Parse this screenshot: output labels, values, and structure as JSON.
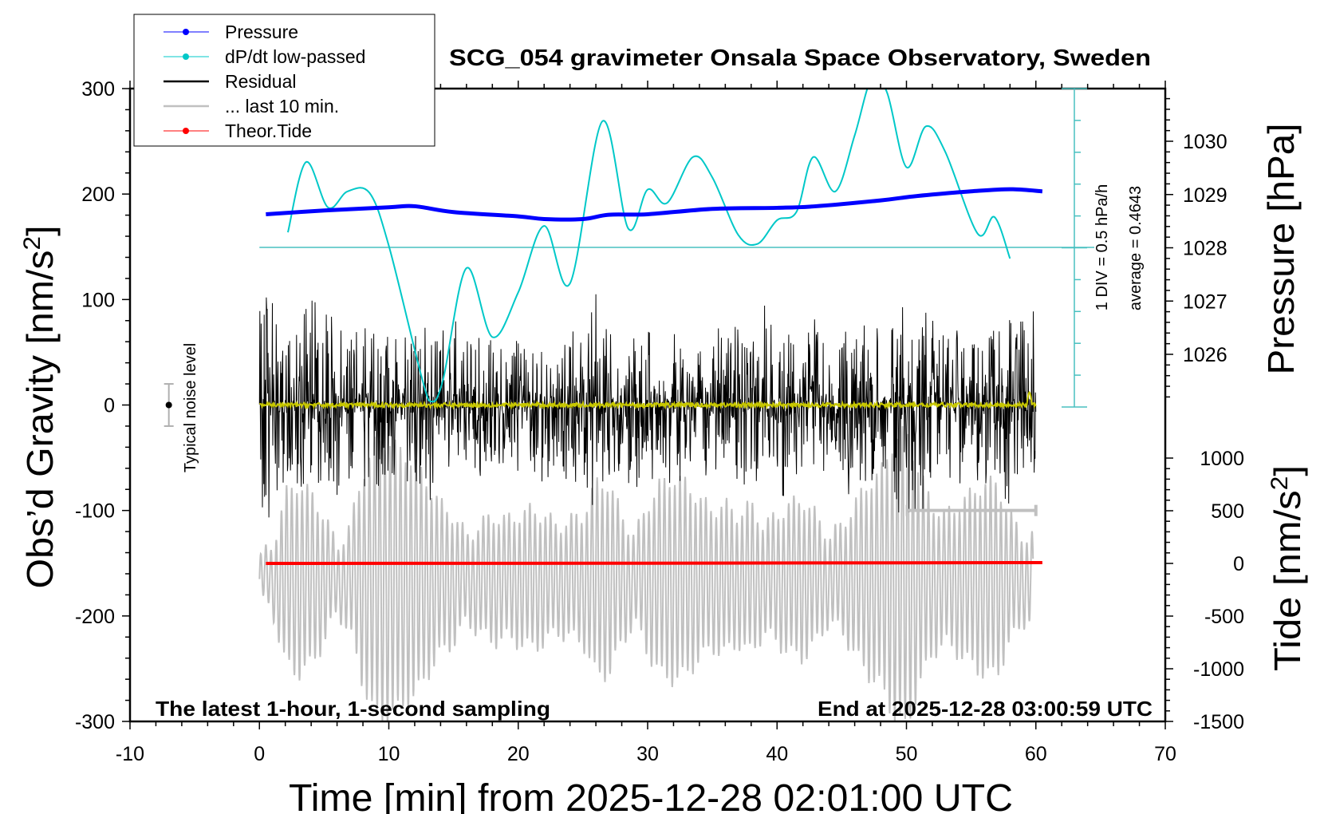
{
  "chart_data": {
    "type": "line",
    "title": "SCG_054 gravimeter Onsala Space Observatory, Sweden",
    "xlabel": "Time [min] from 2025-12-28 02:01:00 UTC",
    "ylabel_left": "Obs’d Gravity [nm/s2]",
    "ylabel_right_top": "Pressure [hPa]",
    "ylabel_right_bottom": "Tide [nm/s2]",
    "xlim": [
      -10,
      70
    ],
    "ylim": [
      -300,
      300
    ],
    "pressure_lim": [
      1025.19,
      1031.66
    ],
    "tide_lim": [
      -1500,
      3000
    ],
    "x_ticks": [
      "-10",
      "0",
      "10",
      "20",
      "30",
      "40",
      "50",
      "60",
      "70"
    ],
    "y_ticks": [
      "300",
      "200",
      "100",
      "0",
      "-100",
      "-200",
      "-300"
    ],
    "pressure_ticks": [
      "1030",
      "1029",
      "1028",
      "1027",
      "1026"
    ],
    "tide_ticks": [
      "1000",
      "500",
      "0",
      "-500",
      "-1000",
      "-1500"
    ],
    "annotation_left": "The latest 1-hour, 1-second sampling",
    "annotation_right": "End at 2025-12-28 03:00:59 UTC",
    "noise_label": "Typical noise level",
    "noise_level": 20,
    "dpdt_scale_label": "1 DIV = 0.5 hPa/h",
    "dpdt_average_label": "average = 0.4643",
    "dpdt_average": 0.4643,
    "dpdt_div": 0.5,
    "legend": [
      {
        "name": "Pressure",
        "color": "#0000ff",
        "marker": true
      },
      {
        "name": "dP/dt low-passed",
        "color": "#00c8c8",
        "marker": true
      },
      {
        "name": "Residual",
        "color": "#000000",
        "marker": false
      },
      {
        "name": "... last 10 min.",
        "color": "#c0c0c0",
        "marker": false
      },
      {
        "name": "Theor.Tide",
        "color": "#ff0000",
        "marker": true
      }
    ],
    "legend_position": "top-left",
    "colors": {
      "pressure": "#0000ff",
      "dpdt": "#00c8c8",
      "dpdt_axis": "#48c0c0",
      "residual": "#000000",
      "low_passed": "#c8c800",
      "last10": "#c0c0c0",
      "tide": "#ff0000"
    },
    "pressure": {
      "x": [
        0.5,
        5,
        10,
        12,
        15,
        20,
        22,
        25,
        27,
        30,
        35,
        40,
        43,
        48,
        50,
        52,
        55,
        58,
        60.5
      ],
      "y": [
        1028.63,
        1028.7,
        1028.76,
        1028.78,
        1028.67,
        1028.59,
        1028.54,
        1028.54,
        1028.62,
        1028.63,
        1028.73,
        1028.75,
        1028.78,
        1028.89,
        1028.95,
        1029.0,
        1029.06,
        1029.1,
        1029.06
      ]
    },
    "dpdt": {
      "x": [
        2.2,
        3.6,
        5.3,
        6.8,
        8.5,
        10,
        12.5,
        13.3,
        14.2,
        16,
        18,
        20,
        22,
        24,
        26.5,
        28.5,
        30,
        31.5,
        33.5,
        35,
        37,
        38.5,
        40,
        41.5,
        42.8,
        44.5,
        46,
        47.3,
        48.5,
        50,
        51.5,
        53,
        55.5,
        56.8,
        58
      ],
      "y": [
        0.7,
        1.8,
        1.09,
        1.34,
        1.32,
        0.49,
        -1.54,
        -1.95,
        -1.6,
        0.14,
        -0.94,
        -0.24,
        0.8,
        -0.1,
        2.44,
        0.76,
        1.37,
        1.16,
        1.88,
        1.56,
        0.66,
        0.52,
        0.89,
        1.02,
        1.88,
        1.34,
        2.22,
        3.1,
        2.89,
        1.72,
        2.36,
        1.96,
        0.68,
        0.94,
        0.29
      ]
    },
    "residual_max_per_min": [
      100,
      110,
      70,
      90,
      135,
      95,
      75,
      60,
      80,
      65,
      70,
      60,
      100,
      90,
      70,
      85,
      65,
      70,
      60,
      65,
      60,
      70,
      75,
      70,
      65,
      85,
      105,
      65,
      80,
      75,
      70,
      60,
      75,
      60,
      70,
      75,
      70,
      90,
      65,
      105,
      60,
      75,
      70,
      90,
      70,
      65,
      80,
      75,
      85,
      85,
      110,
      95,
      80,
      75,
      70,
      80,
      70,
      85,
      110,
      90
    ],
    "residual_min_per_min": [
      -90,
      -120,
      -80,
      -75,
      -110,
      -100,
      -95,
      -70,
      -80,
      -90,
      -70,
      -75,
      -85,
      -100,
      -80,
      -85,
      -65,
      -70,
      -65,
      -70,
      -70,
      -60,
      -75,
      -70,
      -80,
      -70,
      -120,
      -75,
      -70,
      -85,
      -75,
      -70,
      -80,
      -75,
      -70,
      -85,
      -70,
      -80,
      -70,
      -75,
      -100,
      -75,
      -70,
      -70,
      -65,
      -80,
      -90,
      -70,
      -85,
      -100,
      -105,
      -110,
      -90,
      -80,
      -75,
      -70,
      -75,
      -80,
      -100,
      -80
    ],
    "last10_center": -165,
    "last10_amplitude_per_min": [
      20,
      30,
      80,
      90,
      80,
      60,
      30,
      50,
      100,
      130,
      130,
      120,
      110,
      90,
      70,
      60,
      40,
      50,
      60,
      55,
      60,
      65,
      60,
      50,
      55,
      60,
      90,
      90,
      60,
      40,
      70,
      90,
      95,
      90,
      75,
      65,
      70,
      60,
      70,
      50,
      60,
      70,
      75,
      60,
      40,
      50,
      70,
      90,
      100,
      130,
      140,
      100,
      70,
      60,
      70,
      80,
      90,
      90,
      60,
      40
    ],
    "last10_window": [
      50,
      60
    ],
    "tide": {
      "x": [
        0.5,
        30,
        60.5
      ],
      "y": [
        0,
        2,
        8
      ]
    }
  }
}
